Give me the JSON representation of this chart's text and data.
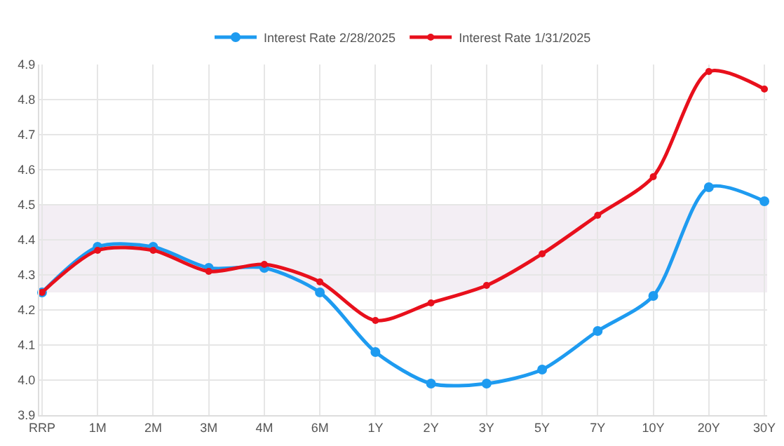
{
  "chart_data": {
    "type": "line",
    "categories": [
      "RRP",
      "1M",
      "2M",
      "3M",
      "4M",
      "6M",
      "1Y",
      "2Y",
      "3Y",
      "5Y",
      "7Y",
      "10Y",
      "20Y",
      "30Y"
    ],
    "series": [
      {
        "name": "Interest Rate 2/28/2025",
        "color": "#1e9bf0",
        "values": [
          4.25,
          4.38,
          4.38,
          4.32,
          4.32,
          4.25,
          4.08,
          3.99,
          3.99,
          4.03,
          4.14,
          4.24,
          4.55,
          4.51
        ]
      },
      {
        "name": "Interest Rate 1/31/2025",
        "color": "#e8101c",
        "values": [
          4.25,
          4.37,
          4.37,
          4.31,
          4.33,
          4.28,
          4.17,
          4.22,
          4.27,
          4.36,
          4.47,
          4.58,
          4.88,
          4.83
        ]
      }
    ],
    "ylim": [
      3.9,
      4.9
    ],
    "yticks": [
      {
        "value": 3.9,
        "label": "3.9"
      },
      {
        "value": 4,
        "label": "4.0"
      },
      {
        "value": 4.1,
        "label": "4.1"
      },
      {
        "value": 4.2,
        "label": "4.2"
      },
      {
        "value": 4.3,
        "label": "4.3"
      },
      {
        "value": 4.4,
        "label": "4.4"
      },
      {
        "value": 4.5,
        "label": "4.5"
      },
      {
        "value": 4.6,
        "label": "4.6"
      },
      {
        "value": 4.7,
        "label": "4.7"
      },
      {
        "value": 4.8,
        "label": "4.8"
      },
      {
        "value": 4.9,
        "label": "4.9"
      }
    ],
    "bands": [
      {
        "axis": "y",
        "from": 4.25,
        "to": 4.5,
        "color": "#f3eef4"
      }
    ],
    "grid": true,
    "legend": "top",
    "marker": "circle",
    "line_style": "solid"
  }
}
